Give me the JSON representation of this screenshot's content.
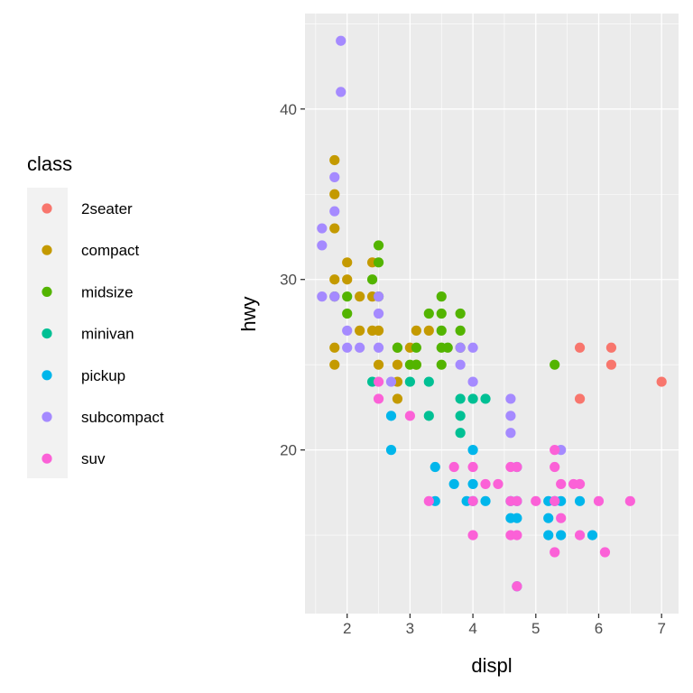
{
  "chart_data": {
    "type": "scatter",
    "title": "",
    "xlabel": "displ",
    "ylabel": "hwy",
    "xlim": [
      1.33,
      7.27
    ],
    "ylim": [
      10.4,
      45.6
    ],
    "xticks": [
      2,
      3,
      4,
      5,
      6,
      7
    ],
    "yticks": [
      20,
      30,
      40
    ],
    "grid": true,
    "legend": {
      "title": "class",
      "position": "left"
    },
    "series": [
      {
        "name": "2seater",
        "color": "#F8766D",
        "points": [
          [
            5.7,
            26
          ],
          [
            5.7,
            23
          ],
          [
            6.2,
            26
          ],
          [
            6.2,
            25
          ],
          [
            7.0,
            24
          ]
        ]
      },
      {
        "name": "compact",
        "color": "#C49A00",
        "points": [
          [
            1.8,
            37
          ],
          [
            1.8,
            35
          ],
          [
            1.8,
            33
          ],
          [
            1.8,
            30
          ],
          [
            1.8,
            26
          ],
          [
            1.8,
            25
          ],
          [
            2.0,
            31
          ],
          [
            2.0,
            30
          ],
          [
            2.2,
            27
          ],
          [
            2.2,
            29
          ],
          [
            2.4,
            31
          ],
          [
            2.4,
            29
          ],
          [
            2.4,
            27
          ],
          [
            2.5,
            27
          ],
          [
            2.5,
            25
          ],
          [
            2.8,
            26
          ],
          [
            2.8,
            25
          ],
          [
            2.8,
            24
          ],
          [
            2.8,
            23
          ],
          [
            3.0,
            26
          ],
          [
            3.1,
            27
          ],
          [
            3.1,
            25
          ],
          [
            3.3,
            27
          ]
        ]
      },
      {
        "name": "midsize",
        "color": "#53B400",
        "points": [
          [
            1.8,
            29
          ],
          [
            2.0,
            29
          ],
          [
            2.0,
            28
          ],
          [
            2.4,
            30
          ],
          [
            2.5,
            32
          ],
          [
            2.5,
            31
          ],
          [
            2.5,
            29
          ],
          [
            2.8,
            26
          ],
          [
            3.0,
            25
          ],
          [
            3.1,
            26
          ],
          [
            3.1,
            25
          ],
          [
            3.3,
            28
          ],
          [
            3.5,
            29
          ],
          [
            3.5,
            28
          ],
          [
            3.5,
            27
          ],
          [
            3.5,
            26
          ],
          [
            3.5,
            25
          ],
          [
            3.6,
            26
          ],
          [
            3.8,
            28
          ],
          [
            3.8,
            27
          ],
          [
            3.8,
            26
          ],
          [
            5.3,
            25
          ]
        ]
      },
      {
        "name": "minivan",
        "color": "#00C094",
        "points": [
          [
            2.4,
            24
          ],
          [
            3.0,
            24
          ],
          [
            3.3,
            24
          ],
          [
            3.3,
            22
          ],
          [
            3.8,
            23
          ],
          [
            3.8,
            22
          ],
          [
            3.8,
            21
          ],
          [
            4.0,
            23
          ],
          [
            4.2,
            23
          ]
        ]
      },
      {
        "name": "pickup",
        "color": "#00B6EB",
        "points": [
          [
            2.7,
            22
          ],
          [
            2.7,
            20
          ],
          [
            3.4,
            19
          ],
          [
            3.4,
            17
          ],
          [
            3.7,
            18
          ],
          [
            3.9,
            17
          ],
          [
            4.0,
            20
          ],
          [
            4.0,
            18
          ],
          [
            4.0,
            17
          ],
          [
            4.2,
            17
          ],
          [
            4.6,
            17
          ],
          [
            4.6,
            16
          ],
          [
            4.7,
            19
          ],
          [
            4.7,
            17
          ],
          [
            4.7,
            16
          ],
          [
            4.7,
            12
          ],
          [
            5.2,
            17
          ],
          [
            5.2,
            16
          ],
          [
            5.2,
            15
          ],
          [
            5.3,
            17
          ],
          [
            5.4,
            17
          ],
          [
            5.4,
            15
          ],
          [
            5.7,
            17
          ],
          [
            5.9,
            15
          ]
        ]
      },
      {
        "name": "subcompact",
        "color": "#A58AFF",
        "points": [
          [
            1.9,
            44
          ],
          [
            1.9,
            41
          ],
          [
            1.6,
            33
          ],
          [
            1.6,
            32
          ],
          [
            1.6,
            29
          ],
          [
            1.8,
            36
          ],
          [
            1.8,
            34
          ],
          [
            1.8,
            29
          ],
          [
            2.0,
            27
          ],
          [
            2.0,
            26
          ],
          [
            2.2,
            26
          ],
          [
            2.5,
            29
          ],
          [
            2.5,
            28
          ],
          [
            2.5,
            26
          ],
          [
            2.7,
            24
          ],
          [
            3.8,
            25
          ],
          [
            3.8,
            26
          ],
          [
            4.0,
            26
          ],
          [
            4.0,
            24
          ],
          [
            4.6,
            23
          ],
          [
            4.6,
            22
          ],
          [
            4.6,
            21
          ],
          [
            5.4,
            20
          ]
        ]
      },
      {
        "name": "suv",
        "color": "#FB61D7",
        "points": [
          [
            2.5,
            23
          ],
          [
            2.5,
            24
          ],
          [
            3.0,
            22
          ],
          [
            3.3,
            17
          ],
          [
            3.7,
            19
          ],
          [
            4.0,
            19
          ],
          [
            4.0,
            17
          ],
          [
            4.0,
            15
          ],
          [
            4.2,
            18
          ],
          [
            4.4,
            18
          ],
          [
            4.6,
            19
          ],
          [
            4.6,
            17
          ],
          [
            4.6,
            15
          ],
          [
            4.7,
            19
          ],
          [
            4.7,
            17
          ],
          [
            4.7,
            15
          ],
          [
            4.7,
            12
          ],
          [
            5.0,
            17
          ],
          [
            5.3,
            20
          ],
          [
            5.3,
            19
          ],
          [
            5.3,
            17
          ],
          [
            5.3,
            14
          ],
          [
            5.4,
            18
          ],
          [
            5.4,
            16
          ],
          [
            5.6,
            18
          ],
          [
            5.7,
            18
          ],
          [
            5.7,
            15
          ],
          [
            6.0,
            17
          ],
          [
            6.1,
            14
          ],
          [
            6.5,
            17
          ]
        ]
      }
    ]
  }
}
